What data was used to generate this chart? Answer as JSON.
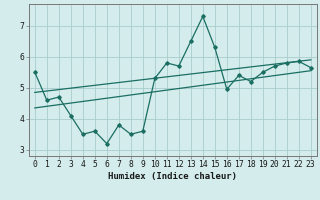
{
  "xlabel": "Humidex (Indice chaleur)",
  "x_values": [
    0,
    1,
    2,
    3,
    4,
    5,
    6,
    7,
    8,
    9,
    10,
    11,
    12,
    13,
    14,
    15,
    16,
    17,
    18,
    19,
    20,
    21,
    22,
    23
  ],
  "y_data": [
    5.5,
    4.6,
    4.7,
    4.1,
    3.5,
    3.6,
    3.2,
    3.8,
    3.5,
    3.6,
    5.3,
    5.8,
    5.7,
    6.5,
    7.3,
    6.3,
    4.95,
    5.4,
    5.2,
    5.5,
    5.7,
    5.8,
    5.85,
    5.65
  ],
  "trend1_start": 4.35,
  "trend1_end": 5.55,
  "trend2_start": 4.85,
  "trend2_end": 5.9,
  "ylim": [
    2.8,
    7.7
  ],
  "xlim": [
    -0.5,
    23.5
  ],
  "bg_color": "#d4ecec",
  "grid_color": "#a8cccc",
  "line_color": "#1a6e62",
  "label_fontsize": 6.5,
  "tick_fontsize": 5.8
}
